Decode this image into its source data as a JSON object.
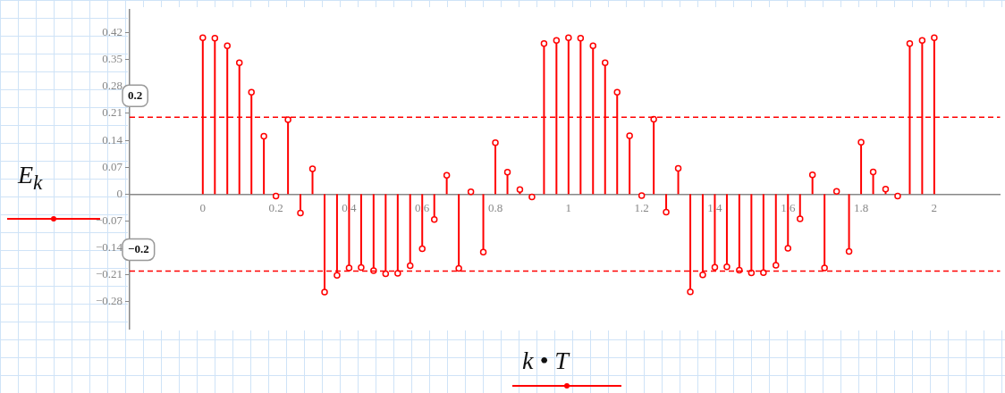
{
  "chart_data": {
    "type": "lollipop",
    "xlabel": "k • T",
    "ylabel": "E$_{k}$",
    "color": "#ff0000",
    "marker": "circle",
    "x": [
      0,
      0.033,
      0.067,
      0.1,
      0.133,
      0.167,
      0.2,
      0.233,
      0.267,
      0.3,
      0.333,
      0.367,
      0.4,
      0.433,
      0.467,
      0.5,
      0.533,
      0.567,
      0.6,
      0.633,
      0.667,
      0.7,
      0.733,
      0.767,
      0.8,
      0.833,
      0.867,
      0.9,
      0.933,
      0.967,
      1,
      1.033,
      1.067,
      1.1,
      1.133,
      1.167,
      1.2,
      1.233,
      1.267,
      1.3,
      1.333,
      1.367,
      1.4,
      1.433,
      1.467,
      1.5,
      1.533,
      1.567,
      1.6,
      1.633,
      1.667,
      1.7,
      1.733,
      1.767,
      1.8,
      1.833,
      1.867,
      1.9,
      1.933,
      1.967,
      2
    ],
    "values": [
      0.407,
      0.406,
      0.386,
      0.342,
      0.265,
      0.151,
      -0.005,
      0.194,
      -0.049,
      0.066,
      -0.255,
      -0.211,
      -0.192,
      -0.191,
      -0.199,
      -0.207,
      -0.206,
      -0.186,
      -0.142,
      -0.066,
      0.049,
      -0.193,
      0.006,
      -0.151,
      0.134,
      0.057,
      0.012,
      -0.007,
      0.392,
      0.4,
      0.407,
      0.406,
      0.386,
      0.342,
      0.265,
      0.152,
      -0.004,
      0.195,
      -0.047,
      0.067,
      -0.254,
      -0.21,
      -0.19,
      -0.189,
      -0.198,
      -0.205,
      -0.204,
      -0.185,
      -0.141,
      -0.064,
      0.05,
      -0.192,
      0.007,
      -0.149,
      0.135,
      0.058,
      0.013,
      -0.005,
      0.392,
      0.4,
      0.407
    ],
    "xlim": [
      -0.2,
      2.18
    ],
    "xticks": [
      0,
      0.2,
      0.4,
      0.6,
      0.8,
      1,
      1.2,
      1.4,
      1.6,
      1.8,
      2
    ],
    "ylim": [
      -0.35,
      0.48
    ],
    "yticks": [
      0.42,
      0.35,
      0.28,
      0.21,
      0.14,
      0.07,
      0,
      -0.07,
      -0.14,
      -0.21,
      -0.28
    ],
    "ref_lines": [
      {
        "axis": "y",
        "value": 0.2,
        "label": "0.2",
        "line_style": "dashed"
      },
      {
        "axis": "y",
        "value": -0.2,
        "label": "−0.2",
        "line_style": "dashed"
      }
    ]
  }
}
